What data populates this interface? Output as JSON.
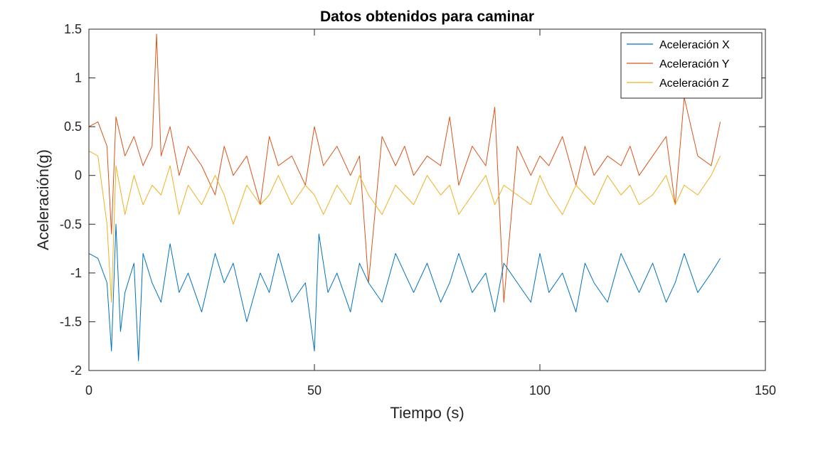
{
  "chart_data": {
    "type": "line",
    "title": "Datos obtenidos para caminar",
    "xlabel": "Tiempo (s)",
    "ylabel": "Aceleración(g)",
    "xlim": [
      0,
      150
    ],
    "ylim": [
      -2,
      1.5
    ],
    "xticks": [
      0,
      50,
      100,
      150
    ],
    "yticks": [
      -2,
      -1.5,
      -1,
      -0.5,
      0,
      0.5,
      1,
      1.5
    ],
    "xtick_labels": [
      "0",
      "50",
      "100",
      "150"
    ],
    "ytick_labels": [
      "-2",
      "-1.5",
      "-1",
      "-0.5",
      "0",
      "0.5",
      "1",
      "1.5"
    ],
    "grid": false,
    "legend_location": "top-right",
    "series": [
      {
        "name": "Aceleración X",
        "color": "#0072BD",
        "x": [
          0,
          2,
          4,
          5,
          6,
          7,
          8,
          10,
          11,
          12,
          14,
          16,
          18,
          20,
          22,
          25,
          28,
          30,
          32,
          35,
          38,
          40,
          42,
          45,
          48,
          50,
          51,
          53,
          55,
          58,
          60,
          62,
          65,
          68,
          70,
          72,
          75,
          78,
          80,
          82,
          85,
          88,
          90,
          92,
          95,
          98,
          100,
          102,
          105,
          108,
          110,
          112,
          115,
          118,
          120,
          122,
          125,
          128,
          130,
          132,
          135,
          138,
          140
        ],
        "y": [
          -0.8,
          -0.85,
          -1.1,
          -1.8,
          -0.5,
          -1.6,
          -1.2,
          -0.9,
          -1.9,
          -0.8,
          -1.1,
          -1.3,
          -0.7,
          -1.2,
          -1.0,
          -1.4,
          -0.8,
          -1.1,
          -0.9,
          -1.5,
          -1.0,
          -1.2,
          -0.8,
          -1.3,
          -1.1,
          -1.8,
          -0.6,
          -1.2,
          -1.0,
          -1.4,
          -0.9,
          -1.1,
          -1.3,
          -0.8,
          -1.0,
          -1.2,
          -0.9,
          -1.3,
          -1.1,
          -0.8,
          -1.2,
          -1.0,
          -1.4,
          -0.9,
          -1.1,
          -1.3,
          -0.8,
          -1.2,
          -1.0,
          -1.4,
          -0.9,
          -1.1,
          -1.3,
          -0.8,
          -1.0,
          -1.2,
          -0.9,
          -1.3,
          -1.1,
          -0.8,
          -1.2,
          -1.0,
          -0.85
        ]
      },
      {
        "name": "Aceleración Y",
        "color": "#D95319",
        "x": [
          0,
          2,
          4,
          5,
          6,
          8,
          10,
          12,
          14,
          15,
          16,
          18,
          20,
          22,
          25,
          28,
          30,
          32,
          35,
          38,
          40,
          42,
          45,
          48,
          50,
          52,
          55,
          58,
          60,
          62,
          65,
          68,
          70,
          72,
          75,
          78,
          80,
          82,
          85,
          88,
          90,
          92,
          95,
          98,
          100,
          102,
          105,
          108,
          110,
          112,
          115,
          118,
          120,
          122,
          125,
          128,
          130,
          132,
          135,
          138,
          140
        ],
        "y": [
          0.5,
          0.55,
          0.3,
          -0.6,
          0.6,
          0.2,
          0.4,
          0.1,
          0.3,
          1.45,
          0.2,
          0.5,
          0.0,
          0.3,
          0.1,
          -0.2,
          0.3,
          0.0,
          0.2,
          -0.3,
          0.4,
          0.1,
          0.2,
          -0.1,
          0.5,
          0.1,
          0.3,
          0.0,
          0.2,
          -1.1,
          0.4,
          0.1,
          0.3,
          0.0,
          0.2,
          0.1,
          0.6,
          -0.1,
          0.3,
          0.1,
          0.7,
          -1.3,
          0.3,
          0.0,
          0.2,
          0.1,
          0.4,
          -0.1,
          0.3,
          0.0,
          0.2,
          0.1,
          0.3,
          0.0,
          0.2,
          0.4,
          -0.3,
          0.8,
          0.2,
          0.1,
          0.55
        ]
      },
      {
        "name": "Aceleración Z",
        "color": "#EDB120",
        "x": [
          0,
          2,
          4,
          5,
          6,
          8,
          10,
          12,
          14,
          16,
          18,
          20,
          22,
          25,
          28,
          30,
          32,
          35,
          38,
          40,
          42,
          45,
          48,
          50,
          52,
          55,
          58,
          60,
          62,
          65,
          68,
          70,
          72,
          75,
          78,
          80,
          82,
          85,
          88,
          90,
          92,
          95,
          98,
          100,
          102,
          105,
          108,
          110,
          112,
          115,
          118,
          120,
          122,
          125,
          128,
          130,
          132,
          135,
          138,
          140
        ],
        "y": [
          0.25,
          0.2,
          -0.5,
          -1.3,
          0.1,
          -0.4,
          0.0,
          -0.3,
          -0.1,
          -0.2,
          0.1,
          -0.4,
          -0.1,
          -0.3,
          0.0,
          -0.2,
          -0.5,
          -0.1,
          -0.3,
          -0.2,
          0.0,
          -0.3,
          -0.1,
          -0.2,
          -0.4,
          -0.1,
          -0.3,
          0.0,
          -0.2,
          -0.4,
          -0.1,
          -0.2,
          -0.3,
          0.0,
          -0.2,
          -0.1,
          -0.4,
          -0.2,
          0.0,
          -0.3,
          -0.1,
          -0.2,
          -0.3,
          0.0,
          -0.2,
          -0.4,
          -0.1,
          -0.2,
          -0.3,
          0.0,
          -0.2,
          -0.1,
          -0.3,
          -0.2,
          0.0,
          -0.3,
          -0.1,
          -0.2,
          0.0,
          0.2
        ]
      }
    ]
  }
}
